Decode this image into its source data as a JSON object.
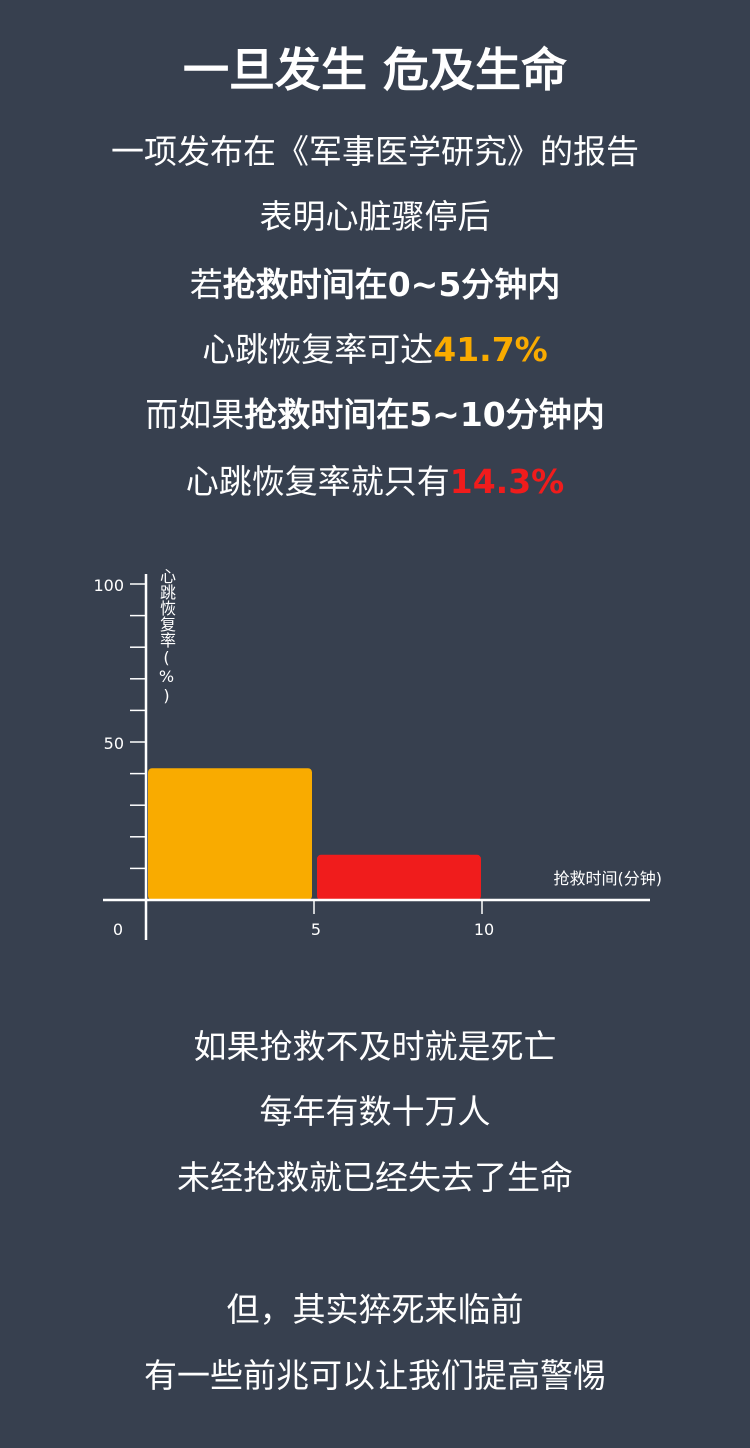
{
  "title": "一旦发生 危及生命",
  "intro": [
    {
      "segments": [
        {
          "text": "一项发布在《军事医学研究》的报告",
          "bold": false
        }
      ]
    },
    {
      "segments": [
        {
          "text": "表明心脏骤停后",
          "bold": false
        }
      ]
    },
    {
      "segments": [
        {
          "text": "若",
          "bold": false
        },
        {
          "text": "抢救时间在0~5分钟内",
          "bold": true
        }
      ]
    },
    {
      "segments": [
        {
          "text": "心跳恢复率可达",
          "bold": false
        },
        {
          "text": "41.7%",
          "bold": true,
          "color": "#f9ab00"
        }
      ]
    },
    {
      "segments": [
        {
          "text": "而如果",
          "bold": false
        },
        {
          "text": "抢救时间在5~10分钟内",
          "bold": true
        }
      ]
    },
    {
      "segments": [
        {
          "text": "心跳恢复率就只有",
          "bold": false
        },
        {
          "text": "14.3%",
          "bold": true,
          "color": "#f01c1c"
        }
      ]
    }
  ],
  "chart_data": {
    "type": "bar",
    "ylabel": "心跳恢复率(%)",
    "xlabel": "抢救时间(分钟)",
    "ylim": [
      0,
      100
    ],
    "xlim": [
      0,
      15
    ],
    "y_ticks": [
      50,
      100
    ],
    "y_minor_ticks": [
      10,
      20,
      30,
      40,
      60,
      70,
      80,
      90
    ],
    "x_ticks": [
      0,
      5,
      10
    ],
    "grid": false,
    "bars": [
      {
        "x0": 0,
        "x1": 5,
        "value": 41.7,
        "color": "#f9ab00"
      },
      {
        "x0": 5,
        "x1": 10,
        "value": 14.3,
        "color": "#f01c1c"
      }
    ]
  },
  "outro1": [
    "如果抢救不及时就是死亡",
    "每年有数十万人",
    "未经抢救就已经失去了生命"
  ],
  "outro2": [
    "但，其实猝死来临前",
    "有一些前兆可以让我们提高警惕"
  ]
}
